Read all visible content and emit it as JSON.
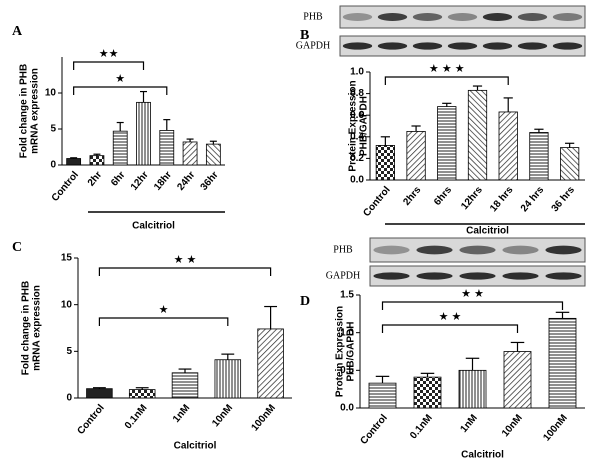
{
  "chart_data": [
    {
      "type": "bar",
      "panel": "A",
      "ylabel": [
        "Fold change in PHB",
        "mRNA expression"
      ],
      "xlabel": "Calcitriol",
      "categories": [
        "Control",
        "2hr",
        "6hr",
        "12hr",
        "18hr",
        "24hr",
        "36hr"
      ],
      "values": [
        0.9,
        1.3,
        4.7,
        8.7,
        4.8,
        3.2,
        2.9
      ],
      "errors": [
        0.1,
        0.2,
        1.2,
        1.5,
        1.5,
        0.4,
        0.4
      ],
      "patterns": [
        "solid",
        "checker",
        "hlines",
        "vlines",
        "hlines",
        "diag",
        "diag2"
      ],
      "ylim": [
        0,
        15
      ],
      "yticks": [
        0,
        5,
        10
      ],
      "annotations": [
        "★★",
        "★"
      ]
    },
    {
      "type": "bar",
      "panel": "B",
      "ylabel": [
        "Protein Expression",
        "PHB/GAPDH"
      ],
      "xlabel": "Calcitriol",
      "categories": [
        "Control",
        "2hrs",
        "6hrs",
        "12hrs",
        "18 hrs",
        "24 hrs",
        "36 hrs"
      ],
      "values": [
        0.32,
        0.45,
        0.68,
        0.83,
        0.63,
        0.44,
        0.3
      ],
      "errors": [
        0.08,
        0.05,
        0.03,
        0.04,
        0.13,
        0.03,
        0.04
      ],
      "patterns": [
        "checker",
        "diag",
        "hlines",
        "diag2",
        "diag",
        "hlines",
        "diag2"
      ],
      "ylim": [
        0,
        1
      ],
      "yticks": [
        {
          "value": 0,
          "label": "0.0"
        },
        0.2,
        0.4,
        0.6,
        0.8,
        {
          "value": 1,
          "label": "1.0"
        }
      ],
      "annotations": [
        "★ ★ ★"
      ],
      "blot_labels": [
        "PHB",
        "GAPDH"
      ]
    },
    {
      "type": "bar",
      "panel": "C",
      "ylabel": [
        "Fold change in PHB",
        "mRNA expression"
      ],
      "xlabel": "Calcitriol",
      "categories": [
        "Control",
        "0.1nM",
        "1nM",
        "10nM",
        "100nM"
      ],
      "values": [
        1.0,
        0.9,
        2.7,
        4.1,
        7.4
      ],
      "errors": [
        0.1,
        0.2,
        0.4,
        0.6,
        2.4
      ],
      "patterns": [
        "solid",
        "checker",
        "hlines",
        "vlines",
        "diag"
      ],
      "ylim": [
        0,
        15
      ],
      "yticks": [
        0,
        5,
        10,
        15
      ],
      "annotations": [
        "★ ★",
        "★"
      ]
    },
    {
      "type": "bar",
      "panel": "D",
      "ylabel": [
        "Protein Expression",
        "PHB/GAPDH"
      ],
      "xlabel": "Calcitriol",
      "categories": [
        "Control",
        "0.1nM",
        "1nM",
        "10nM",
        "100nM"
      ],
      "values": [
        0.33,
        0.41,
        0.5,
        0.75,
        1.19
      ],
      "errors": [
        0.09,
        0.05,
        0.16,
        0.12,
        0.08
      ],
      "patterns": [
        "hlines",
        "checker",
        "vlines",
        "diag",
        "hlines"
      ],
      "ylim": [
        0,
        1.5
      ],
      "yticks": [
        {
          "value": 0,
          "label": "0.0"
        },
        0.5,
        {
          "value": 1,
          "label": "1.0"
        },
        1.5
      ],
      "annotations": [
        "★ ★",
        "★ ★"
      ],
      "blot_labels": [
        "PHB",
        "GAPDH"
      ]
    }
  ]
}
